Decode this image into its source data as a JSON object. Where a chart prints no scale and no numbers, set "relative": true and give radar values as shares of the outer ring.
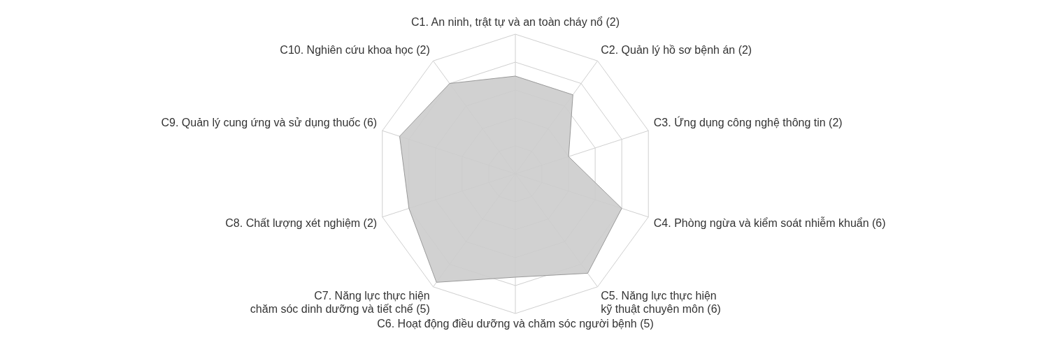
{
  "chart_data": {
    "type": "radar",
    "relative": true,
    "grid": true,
    "categories": [
      "C1. An ninh, trật tự và an toàn cháy nổ (2)",
      "C2. Quản lý hồ sơ bệnh án (2)",
      "C3. Ứng dụng công nghệ thông tin (2)",
      "C4. Phòng ngừa và kiểm soát nhiễm khuẩn (6)",
      "C5. Năng lực thực hiện\nkỹ thuật chuyên môn (6)",
      "C6. Hoạt động điều dưỡng và chăm sóc người bệnh (5)",
      "C7. Năng lực thực hiện\nchăm sóc dinh dưỡng và tiết chế (5)",
      "C8. Chất lượng xét nghiệm (2)",
      "C9. Quản lý cung ứng và sử dụng thuốc (6)",
      "C10. Nghiên cứu khoa học (2)"
    ],
    "series": [
      {
        "color": "#cccccc",
        "values": [
          0.7,
          0.7,
          0.4,
          0.8,
          0.88,
          0.74,
          0.96,
          0.8,
          0.87,
          0.8
        ]
      }
    ]
  }
}
